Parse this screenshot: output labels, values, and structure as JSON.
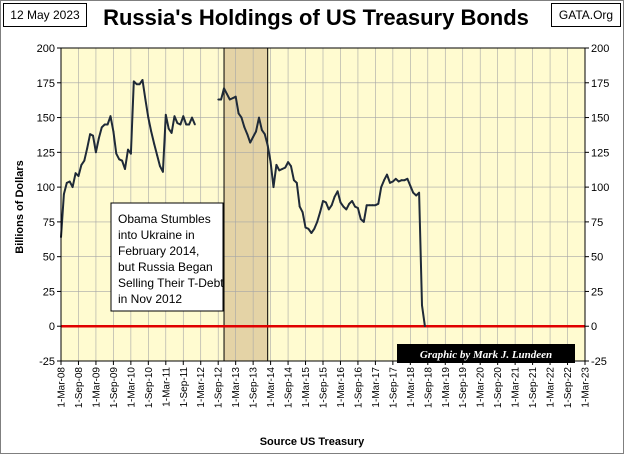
{
  "header": {
    "date": "12 May 2023",
    "site": "GATA.Org",
    "title": "Russia's Holdings of US Treasury Bonds"
  },
  "colors": {
    "plot_bg": "#fffbd0",
    "highlight": "#e4d3a6",
    "series": "#1f2a38",
    "zero_line": "#e00000",
    "credit_bg": "#000000"
  },
  "chart_data": {
    "type": "line",
    "title": "Russia's Holdings of US Treasury Bonds",
    "xlabel": "Source US Treasury",
    "ylabel": "Billions  of  Dollars",
    "ylim": [
      -25,
      200
    ],
    "yticks": [
      -25,
      0,
      25,
      50,
      75,
      100,
      125,
      150,
      175,
      200
    ],
    "xlim": [
      "2008-03",
      "2023-03"
    ],
    "xtick_labels": [
      "1-Mar-08",
      "1-Sep-08",
      "1-Mar-09",
      "1-Sep-09",
      "1-Mar-10",
      "1-Sep-10",
      "1-Mar-11",
      "1-Sep-11",
      "1-Mar-12",
      "1-Sep-12",
      "1-Mar-13",
      "1-Sep-13",
      "1-Mar-14",
      "1-Sep-14",
      "1-Mar-15",
      "1-Sep-15",
      "1-Mar-16",
      "1-Sep-16",
      "1-Mar-17",
      "1-Sep-17",
      "1-Mar-18",
      "1-Sep-18",
      "1-Mar-19",
      "1-Sep-19",
      "1-Mar-20",
      "1-Sep-20",
      "1-Mar-21",
      "1-Sep-21",
      "1-Mar-22",
      "1-Sep-22",
      "1-Mar-23"
    ],
    "grid": true,
    "dual_y_axis": true,
    "shaded_region": [
      "2012-11",
      "2014-02"
    ],
    "reference_line": 0,
    "annotation": "Obama Stumbles into Ukraine in February 2014, but Russia Began Selling Their T-Debt in Nov 2012",
    "credit": "Graphic by Mark J. Lundeen",
    "series": [
      {
        "points": [
          [
            "2008-03",
            64
          ],
          [
            "2008-04",
            95
          ],
          [
            "2008-05",
            103
          ],
          [
            "2008-06",
            104
          ],
          [
            "2008-07",
            100
          ],
          [
            "2008-08",
            110
          ],
          [
            "2008-09",
            108
          ],
          [
            "2008-10",
            116
          ],
          [
            "2008-11",
            119
          ],
          [
            "2008-12",
            128
          ],
          [
            "2009-01",
            138
          ],
          [
            "2009-02",
            137
          ],
          [
            "2009-03",
            125
          ],
          [
            "2009-04",
            135
          ],
          [
            "2009-05",
            143
          ],
          [
            "2009-06",
            145
          ],
          [
            "2009-07",
            145
          ],
          [
            "2009-08",
            151
          ],
          [
            "2009-09",
            140
          ],
          [
            "2009-10",
            124
          ],
          [
            "2009-11",
            120
          ],
          [
            "2009-12",
            119
          ],
          [
            "2010-01",
            113
          ],
          [
            "2010-02",
            127
          ],
          [
            "2010-03",
            124
          ],
          [
            "2010-04",
            176
          ],
          [
            "2010-05",
            174
          ],
          [
            "2010-06",
            174
          ],
          [
            "2010-07",
            177
          ],
          [
            "2010-08",
            163
          ],
          [
            "2010-09",
            150
          ],
          [
            "2010-10",
            140
          ],
          [
            "2010-11",
            131
          ],
          [
            "2010-12",
            123
          ],
          [
            "2011-01",
            115
          ],
          [
            "2011-02",
            111
          ],
          [
            "2011-03",
            152
          ],
          [
            "2011-04",
            142
          ],
          [
            "2011-05",
            139
          ],
          [
            "2011-06",
            151
          ],
          [
            "2011-07",
            146
          ],
          [
            "2011-08",
            145
          ],
          [
            "2011-09",
            151
          ],
          [
            "2011-10",
            145
          ],
          [
            "2011-11",
            145
          ],
          [
            "2011-12",
            150
          ],
          [
            "2012-01",
            145
          ]
        ]
      },
      {
        "points": [
          [
            "2012-09",
            163
          ],
          [
            "2012-10",
            163
          ],
          [
            "2012-11",
            171
          ],
          [
            "2012-12",
            167
          ],
          [
            "2013-01",
            163
          ],
          [
            "2013-02",
            164
          ],
          [
            "2013-03",
            165
          ],
          [
            "2013-04",
            153
          ],
          [
            "2013-05",
            150
          ],
          [
            "2013-06",
            143
          ],
          [
            "2013-07",
            138
          ],
          [
            "2013-08",
            132
          ],
          [
            "2013-09",
            136
          ],
          [
            "2013-10",
            140
          ],
          [
            "2013-11",
            150
          ],
          [
            "2013-12",
            141
          ],
          [
            "2014-01",
            138
          ],
          [
            "2014-02",
            130
          ],
          [
            "2014-03",
            118
          ],
          [
            "2014-04",
            100
          ],
          [
            "2014-05",
            116
          ],
          [
            "2014-06",
            112
          ],
          [
            "2014-07",
            113
          ],
          [
            "2014-08",
            114
          ],
          [
            "2014-09",
            118
          ],
          [
            "2014-10",
            115
          ],
          [
            "2014-11",
            105
          ],
          [
            "2014-12",
            103
          ],
          [
            "2015-01",
            86
          ],
          [
            "2015-02",
            82
          ],
          [
            "2015-03",
            71
          ],
          [
            "2015-04",
            70
          ],
          [
            "2015-05",
            67
          ],
          [
            "2015-06",
            70
          ],
          [
            "2015-07",
            75
          ],
          [
            "2015-08",
            82
          ],
          [
            "2015-09",
            90
          ],
          [
            "2015-10",
            89
          ],
          [
            "2015-11",
            84
          ],
          [
            "2015-12",
            87
          ],
          [
            "2016-01",
            93
          ],
          [
            "2016-02",
            97
          ],
          [
            "2016-03",
            89
          ],
          [
            "2016-04",
            86
          ],
          [
            "2016-05",
            84
          ],
          [
            "2016-06",
            88
          ],
          [
            "2016-07",
            90
          ],
          [
            "2016-08",
            86
          ],
          [
            "2016-09",
            85
          ],
          [
            "2016-10",
            77
          ],
          [
            "2016-11",
            75
          ],
          [
            "2016-12",
            87
          ],
          [
            "2017-01",
            87
          ],
          [
            "2017-02",
            87
          ],
          [
            "2017-03",
            87
          ],
          [
            "2017-04",
            88
          ],
          [
            "2017-05",
            100
          ],
          [
            "2017-06",
            105
          ],
          [
            "2017-07",
            109
          ],
          [
            "2017-08",
            103
          ],
          [
            "2017-09",
            104
          ],
          [
            "2017-10",
            106
          ],
          [
            "2017-11",
            104
          ],
          [
            "2017-12",
            105
          ],
          [
            "2018-01",
            105
          ],
          [
            "2018-02",
            106
          ],
          [
            "2018-03",
            101
          ],
          [
            "2018-04",
            96
          ],
          [
            "2018-05",
            94
          ],
          [
            "2018-06",
            96
          ],
          [
            "2018-07",
            15
          ],
          [
            "2018-08",
            0
          ]
        ]
      }
    ]
  }
}
